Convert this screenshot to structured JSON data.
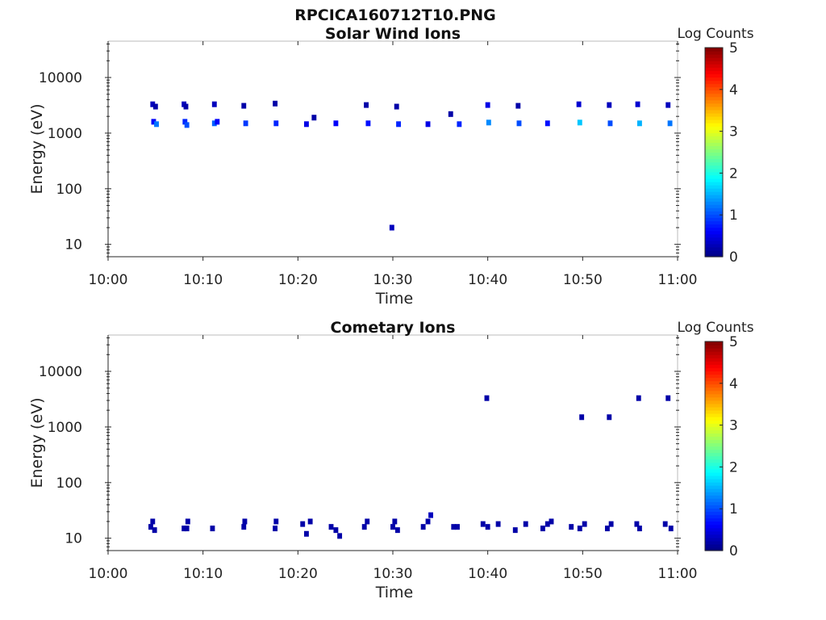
{
  "figure": {
    "filename": "RPCICA160712T10.PNG"
  },
  "colorbar": {
    "label": "Log Counts",
    "min": 0,
    "max": 5,
    "ticks": [
      "0",
      "1",
      "2",
      "3",
      "4",
      "5"
    ],
    "colormap": "jet"
  },
  "colors": {
    "axis": "#262626",
    "background": "#ffffff"
  },
  "chart_data": [
    {
      "type": "heatmap",
      "title": "Solar Wind Ions",
      "xlabel": "Time",
      "ylabel": "Energy (eV)",
      "y_scale": "log",
      "xlim": [
        "10:00",
        "11:00"
      ],
      "x_ticks": [
        "10:00",
        "10:10",
        "10:20",
        "10:30",
        "10:40",
        "10:50",
        "11:00"
      ],
      "y_ticks": [
        "10",
        "100",
        "1000",
        "10000"
      ],
      "ylim": [
        6,
        45000
      ],
      "cells": [
        {
          "t": 4.7,
          "e": 3300,
          "v": 0.3
        },
        {
          "t": 5.0,
          "e": 3000,
          "v": 0.2
        },
        {
          "t": 4.8,
          "e": 1600,
          "v": 0.6
        },
        {
          "t": 5.1,
          "e": 1450,
          "v": 1.2
        },
        {
          "t": 8.0,
          "e": 3300,
          "v": 0.3
        },
        {
          "t": 8.2,
          "e": 3000,
          "v": 0.2
        },
        {
          "t": 8.1,
          "e": 1600,
          "v": 0.8
        },
        {
          "t": 8.3,
          "e": 1400,
          "v": 1.0
        },
        {
          "t": 11.2,
          "e": 3300,
          "v": 0.3
        },
        {
          "t": 11.2,
          "e": 1500,
          "v": 1.1
        },
        {
          "t": 11.5,
          "e": 1600,
          "v": 0.6
        },
        {
          "t": 14.3,
          "e": 3100,
          "v": 0.2
        },
        {
          "t": 14.5,
          "e": 1500,
          "v": 0.9
        },
        {
          "t": 17.6,
          "e": 3400,
          "v": 0.2
        },
        {
          "t": 17.7,
          "e": 1500,
          "v": 0.8
        },
        {
          "t": 20.9,
          "e": 1450,
          "v": 0.5
        },
        {
          "t": 21.7,
          "e": 1900,
          "v": 0.2
        },
        {
          "t": 24.0,
          "e": 1500,
          "v": 0.6
        },
        {
          "t": 27.2,
          "e": 3200,
          "v": 0.2
        },
        {
          "t": 27.4,
          "e": 1500,
          "v": 0.7
        },
        {
          "t": 30.4,
          "e": 3000,
          "v": 0.2
        },
        {
          "t": 30.6,
          "e": 1450,
          "v": 0.8
        },
        {
          "t": 33.7,
          "e": 1450,
          "v": 0.5
        },
        {
          "t": 36.1,
          "e": 2200,
          "v": 0.2
        },
        {
          "t": 37.0,
          "e": 1450,
          "v": 0.8
        },
        {
          "t": 29.9,
          "e": 20,
          "v": 0.3
        },
        {
          "t": 40.0,
          "e": 3200,
          "v": 0.5
        },
        {
          "t": 40.1,
          "e": 1550,
          "v": 1.3
        },
        {
          "t": 43.2,
          "e": 3100,
          "v": 0.2
        },
        {
          "t": 43.3,
          "e": 1500,
          "v": 1.0
        },
        {
          "t": 46.3,
          "e": 1500,
          "v": 0.7
        },
        {
          "t": 49.6,
          "e": 3300,
          "v": 0.4
        },
        {
          "t": 49.7,
          "e": 1550,
          "v": 1.6
        },
        {
          "t": 52.8,
          "e": 3200,
          "v": 0.3
        },
        {
          "t": 52.9,
          "e": 1500,
          "v": 1.0
        },
        {
          "t": 55.8,
          "e": 3300,
          "v": 0.4
        },
        {
          "t": 56.0,
          "e": 1500,
          "v": 1.5
        },
        {
          "t": 59.0,
          "e": 3200,
          "v": 0.3
        },
        {
          "t": 59.2,
          "e": 1500,
          "v": 1.2
        }
      ]
    },
    {
      "type": "heatmap",
      "title": "Cometary Ions",
      "xlabel": "Time",
      "ylabel": "Energy (eV)",
      "y_scale": "log",
      "xlim": [
        "10:00",
        "11:00"
      ],
      "x_ticks": [
        "10:00",
        "10:10",
        "10:20",
        "10:30",
        "10:40",
        "10:50",
        "11:00"
      ],
      "y_ticks": [
        "10",
        "100",
        "1000",
        "10000"
      ],
      "ylim": [
        6,
        45000
      ],
      "cells": [
        {
          "t": 39.9,
          "e": 3300,
          "v": 0.2
        },
        {
          "t": 49.9,
          "e": 1500,
          "v": 0.2
        },
        {
          "t": 52.8,
          "e": 1500,
          "v": 0.2
        },
        {
          "t": 55.9,
          "e": 3300,
          "v": 0.2
        },
        {
          "t": 59.0,
          "e": 3300,
          "v": 0.2
        },
        {
          "t": 4.5,
          "e": 16,
          "v": 0.2
        },
        {
          "t": 4.7,
          "e": 20,
          "v": 0.2
        },
        {
          "t": 4.9,
          "e": 14,
          "v": 0.2
        },
        {
          "t": 8.0,
          "e": 15,
          "v": 0.2
        },
        {
          "t": 8.3,
          "e": 15,
          "v": 0.2
        },
        {
          "t": 8.4,
          "e": 20,
          "v": 0.2
        },
        {
          "t": 11.0,
          "e": 15,
          "v": 0.2
        },
        {
          "t": 14.3,
          "e": 16,
          "v": 0.2
        },
        {
          "t": 14.4,
          "e": 20,
          "v": 0.2
        },
        {
          "t": 17.6,
          "e": 15,
          "v": 0.2
        },
        {
          "t": 17.7,
          "e": 20,
          "v": 0.2
        },
        {
          "t": 20.5,
          "e": 18,
          "v": 0.2
        },
        {
          "t": 20.9,
          "e": 12,
          "v": 0.2
        },
        {
          "t": 21.3,
          "e": 20,
          "v": 0.2
        },
        {
          "t": 23.5,
          "e": 16,
          "v": 0.2
        },
        {
          "t": 24.0,
          "e": 14,
          "v": 0.2
        },
        {
          "t": 24.4,
          "e": 11,
          "v": 0.2
        },
        {
          "t": 27.0,
          "e": 16,
          "v": 0.2
        },
        {
          "t": 27.3,
          "e": 20,
          "v": 0.2
        },
        {
          "t": 30.0,
          "e": 16,
          "v": 0.2
        },
        {
          "t": 30.2,
          "e": 20,
          "v": 0.2
        },
        {
          "t": 30.5,
          "e": 14,
          "v": 0.2
        },
        {
          "t": 33.2,
          "e": 16,
          "v": 0.2
        },
        {
          "t": 33.7,
          "e": 20,
          "v": 0.2
        },
        {
          "t": 34.0,
          "e": 26,
          "v": 0.3
        },
        {
          "t": 36.4,
          "e": 16,
          "v": 0.2
        },
        {
          "t": 36.8,
          "e": 16,
          "v": 0.2
        },
        {
          "t": 39.5,
          "e": 18,
          "v": 0.2
        },
        {
          "t": 40.0,
          "e": 16,
          "v": 0.2
        },
        {
          "t": 41.1,
          "e": 18,
          "v": 0.2
        },
        {
          "t": 42.9,
          "e": 14,
          "v": 0.2
        },
        {
          "t": 44.0,
          "e": 18,
          "v": 0.2
        },
        {
          "t": 45.8,
          "e": 15,
          "v": 0.2
        },
        {
          "t": 46.3,
          "e": 18,
          "v": 0.2
        },
        {
          "t": 46.7,
          "e": 20,
          "v": 0.2
        },
        {
          "t": 48.8,
          "e": 16,
          "v": 0.2
        },
        {
          "t": 49.7,
          "e": 15,
          "v": 0.2
        },
        {
          "t": 50.2,
          "e": 18,
          "v": 0.2
        },
        {
          "t": 52.6,
          "e": 15,
          "v": 0.2
        },
        {
          "t": 53.0,
          "e": 18,
          "v": 0.2
        },
        {
          "t": 55.7,
          "e": 18,
          "v": 0.2
        },
        {
          "t": 56.0,
          "e": 15,
          "v": 0.2
        },
        {
          "t": 58.7,
          "e": 18,
          "v": 0.2
        },
        {
          "t": 59.3,
          "e": 15,
          "v": 0.2
        }
      ]
    }
  ]
}
